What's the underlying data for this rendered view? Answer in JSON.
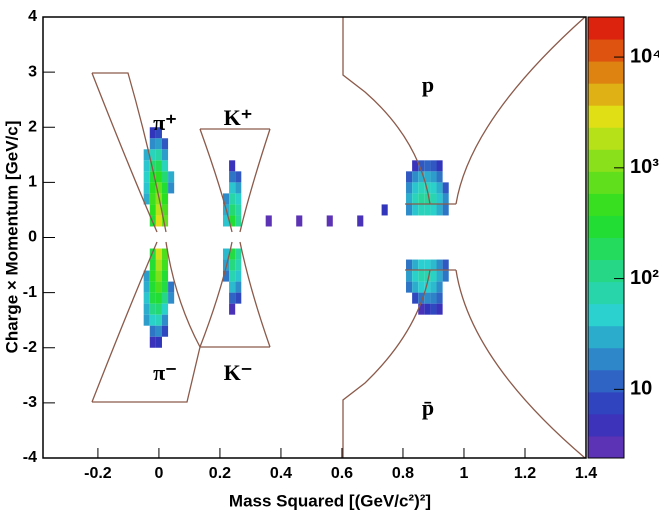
{
  "chart_data": {
    "type": "heatmap",
    "xlabel": "Mass Squared [(GeV/c²)²]",
    "ylabel": "Charge × Momentum [GeV/c]",
    "xlim": [
      -0.38,
      1.4
    ],
    "xticks": [
      -0.2,
      0,
      0.2,
      0.4,
      0.6,
      0.8,
      1,
      1.2,
      1.4
    ],
    "ylim": [
      -4,
      4
    ],
    "yticks": [
      -4,
      -3,
      -2,
      -1,
      0,
      1,
      2,
      3,
      4
    ],
    "zlim": [
      2.4,
      23000
    ],
    "zscale": "log",
    "zticks": [
      10,
      {
        "value": 100,
        "label": "10²"
      },
      {
        "value": 1000,
        "label": "10³"
      },
      {
        "value": 10000,
        "label": "10⁴"
      }
    ],
    "annotations": [
      "π⁺",
      "K⁺",
      "p",
      "π⁻",
      "K⁻",
      "p̄"
    ],
    "cells": [
      [
        -0.02,
        0.3,
        300
      ],
      [
        0,
        0.3,
        3000
      ],
      [
        0.02,
        0.3,
        800
      ],
      [
        -0.02,
        0.5,
        400
      ],
      [
        0,
        0.5,
        2000
      ],
      [
        0.02,
        0.5,
        600
      ],
      [
        -0.04,
        0.7,
        30
      ],
      [
        -0.02,
        0.7,
        500
      ],
      [
        0,
        0.7,
        1200
      ],
      [
        0.02,
        0.7,
        400
      ],
      [
        -0.04,
        0.9,
        40
      ],
      [
        -0.02,
        0.9,
        400
      ],
      [
        0,
        0.9,
        800
      ],
      [
        0.02,
        0.9,
        300
      ],
      [
        0.04,
        0.9,
        20
      ],
      [
        -0.04,
        1.1,
        50
      ],
      [
        -0.02,
        1.1,
        300
      ],
      [
        0,
        1.1,
        400
      ],
      [
        0.02,
        1.1,
        150
      ],
      [
        0.04,
        1.1,
        30
      ],
      [
        -0.04,
        1.3,
        40
      ],
      [
        -0.02,
        1.3,
        150
      ],
      [
        0,
        1.3,
        200
      ],
      [
        0.02,
        1.3,
        60
      ],
      [
        -0.04,
        1.5,
        30
      ],
      [
        -0.02,
        1.5,
        60
      ],
      [
        0,
        1.5,
        80
      ],
      [
        0.02,
        1.5,
        25
      ],
      [
        -0.02,
        1.7,
        20
      ],
      [
        0,
        1.7,
        25
      ],
      [
        0.02,
        1.7,
        10
      ],
      [
        -0.02,
        1.9,
        6
      ],
      [
        0,
        1.9,
        8
      ],
      [
        -0.02,
        -0.3,
        250
      ],
      [
        0,
        -0.3,
        2500
      ],
      [
        0.02,
        -0.3,
        600
      ],
      [
        -0.02,
        -0.5,
        300
      ],
      [
        0,
        -0.5,
        1600
      ],
      [
        0.02,
        -0.5,
        500
      ],
      [
        -0.04,
        -0.7,
        25
      ],
      [
        -0.02,
        -0.7,
        400
      ],
      [
        0,
        -0.7,
        1000
      ],
      [
        0.02,
        -0.7,
        300
      ],
      [
        -0.04,
        -0.9,
        30
      ],
      [
        -0.02,
        -0.9,
        300
      ],
      [
        0,
        -0.9,
        600
      ],
      [
        0.02,
        -0.9,
        250
      ],
      [
        0.04,
        -0.9,
        15
      ],
      [
        -0.04,
        -1.1,
        40
      ],
      [
        -0.02,
        -1.1,
        250
      ],
      [
        0,
        -1.1,
        300
      ],
      [
        0.02,
        -1.1,
        120
      ],
      [
        0.04,
        -1.1,
        20
      ],
      [
        -0.04,
        -1.3,
        30
      ],
      [
        -0.02,
        -1.3,
        120
      ],
      [
        0,
        -1.3,
        150
      ],
      [
        0.02,
        -1.3,
        50
      ],
      [
        -0.04,
        -1.5,
        25
      ],
      [
        -0.02,
        -1.5,
        50
      ],
      [
        0,
        -1.5,
        60
      ],
      [
        0.02,
        -1.5,
        20
      ],
      [
        -0.02,
        -1.7,
        15
      ],
      [
        0,
        -1.7,
        20
      ],
      [
        0.02,
        -1.7,
        8
      ],
      [
        -0.02,
        -1.9,
        5
      ],
      [
        0,
        -1.9,
        6
      ],
      [
        0.22,
        0.3,
        40
      ],
      [
        0.24,
        0.3,
        300
      ],
      [
        0.26,
        0.3,
        100
      ],
      [
        0.22,
        0.5,
        30
      ],
      [
        0.24,
        0.5,
        150
      ],
      [
        0.26,
        0.5,
        80
      ],
      [
        0.22,
        0.7,
        20
      ],
      [
        0.24,
        0.7,
        80
      ],
      [
        0.26,
        0.7,
        50
      ],
      [
        0.24,
        0.9,
        40
      ],
      [
        0.26,
        0.9,
        25
      ],
      [
        0.24,
        1.1,
        15
      ],
      [
        0.26,
        1.1,
        10
      ],
      [
        0.24,
        1.3,
        5
      ],
      [
        0.22,
        -0.3,
        35
      ],
      [
        0.24,
        -0.3,
        250
      ],
      [
        0.26,
        -0.3,
        90
      ],
      [
        0.22,
        -0.5,
        25
      ],
      [
        0.24,
        -0.5,
        130
      ],
      [
        0.26,
        -0.5,
        70
      ],
      [
        0.22,
        -0.7,
        15
      ],
      [
        0.24,
        -0.7,
        70
      ],
      [
        0.26,
        -0.7,
        40
      ],
      [
        0.24,
        -0.9,
        35
      ],
      [
        0.26,
        -0.9,
        20
      ],
      [
        0.24,
        -1.1,
        12
      ],
      [
        0.26,
        -1.1,
        8
      ],
      [
        0.24,
        -1.3,
        4
      ],
      [
        0.36,
        0.3,
        3
      ],
      [
        0.46,
        0.3,
        3
      ],
      [
        0.56,
        0.3,
        3
      ],
      [
        0.66,
        0.3,
        4
      ],
      [
        0.74,
        0.5,
        6
      ],
      [
        0.82,
        0.5,
        20
      ],
      [
        0.84,
        0.5,
        40
      ],
      [
        0.86,
        0.5,
        60
      ],
      [
        0.88,
        0.5,
        60
      ],
      [
        0.9,
        0.5,
        50
      ],
      [
        0.92,
        0.5,
        30
      ],
      [
        0.94,
        0.5,
        15
      ],
      [
        0.82,
        0.7,
        30
      ],
      [
        0.84,
        0.7,
        60
      ],
      [
        0.86,
        0.7,
        90
      ],
      [
        0.88,
        0.7,
        90
      ],
      [
        0.9,
        0.7,
        70
      ],
      [
        0.92,
        0.7,
        40
      ],
      [
        0.94,
        0.7,
        20
      ],
      [
        0.82,
        0.9,
        20
      ],
      [
        0.84,
        0.9,
        40
      ],
      [
        0.86,
        0.9,
        60
      ],
      [
        0.88,
        0.9,
        60
      ],
      [
        0.9,
        0.9,
        50
      ],
      [
        0.92,
        0.9,
        30
      ],
      [
        0.94,
        0.9,
        10
      ],
      [
        0.82,
        1.1,
        10
      ],
      [
        0.84,
        1.1,
        20
      ],
      [
        0.86,
        1.1,
        30
      ],
      [
        0.88,
        1.1,
        30
      ],
      [
        0.9,
        1.1,
        25
      ],
      [
        0.92,
        1.1,
        15
      ],
      [
        0.84,
        1.3,
        5
      ],
      [
        0.86,
        1.3,
        10
      ],
      [
        0.88,
        1.3,
        12
      ],
      [
        0.9,
        1.3,
        10
      ],
      [
        0.92,
        1.3,
        6
      ],
      [
        0.82,
        -0.5,
        15
      ],
      [
        0.84,
        -0.5,
        30
      ],
      [
        0.86,
        -0.5,
        45
      ],
      [
        0.88,
        -0.5,
        45
      ],
      [
        0.9,
        -0.5,
        35
      ],
      [
        0.92,
        -0.5,
        20
      ],
      [
        0.94,
        -0.5,
        10
      ],
      [
        0.82,
        -0.7,
        25
      ],
      [
        0.84,
        -0.7,
        50
      ],
      [
        0.86,
        -0.7,
        70
      ],
      [
        0.88,
        -0.7,
        70
      ],
      [
        0.9,
        -0.7,
        55
      ],
      [
        0.92,
        -0.7,
        30
      ],
      [
        0.94,
        -0.7,
        15
      ],
      [
        0.82,
        -0.9,
        15
      ],
      [
        0.84,
        -0.9,
        30
      ],
      [
        0.86,
        -0.9,
        45
      ],
      [
        0.88,
        -0.9,
        45
      ],
      [
        0.9,
        -0.9,
        35
      ],
      [
        0.92,
        -0.9,
        20
      ],
      [
        0.84,
        -1.1,
        8
      ],
      [
        0.86,
        -1.1,
        15
      ],
      [
        0.88,
        -1.1,
        20
      ],
      [
        0.9,
        -1.1,
        18
      ],
      [
        0.92,
        -1.1,
        12
      ],
      [
        0.86,
        -1.3,
        4
      ],
      [
        0.88,
        -1.3,
        6
      ],
      [
        0.9,
        -1.3,
        8
      ],
      [
        0.92,
        -1.3,
        5
      ]
    ]
  }
}
